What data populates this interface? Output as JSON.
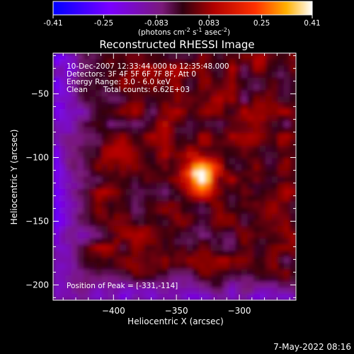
{
  "colorbar": {
    "tick_labels": [
      "-0.41",
      "-0.25",
      "-0.083",
      "0.083",
      "0.25",
      "0.41"
    ],
    "tick_values": [
      -0.41,
      -0.25,
      -0.083,
      0.083,
      0.25,
      0.41
    ],
    "range": [
      -0.41,
      0.41
    ],
    "units_main": "(photons cm",
    "units_sup1": "-2",
    "units_mid": " s",
    "units_sup2": "-1",
    "units_end": " asec",
    "units_sup3": "-2",
    "units_close": ")"
  },
  "chart_data": {
    "type": "heatmap",
    "title": "Reconstructed RHESSI Image",
    "xlabel": "Heliocentric X (arcsec)",
    "ylabel": "Heliocentric Y (arcsec)",
    "xlim": [
      -448,
      -255
    ],
    "ylim": [
      -212,
      -18
    ],
    "x_ticks": [
      -400,
      -350,
      -300
    ],
    "x_tick_labels": [
      "−400",
      "−350",
      "−300"
    ],
    "y_ticks": [
      -50,
      -100,
      -150,
      -200
    ],
    "y_tick_labels": [
      "−50",
      "−100",
      "−150",
      "−200"
    ],
    "peak": {
      "x": -331,
      "y": -114,
      "value": 0.41
    },
    "annotations": {
      "time_range": "10-Dec-2007 12:33:44.000 to 12:35:48.000",
      "detectors": "Detectors: 3F 4F 5F 6F 7F 8F, Att 0",
      "energy": "Energy Range: 3.0 - 6.0 keV",
      "method": "Clean",
      "counts": "Total counts: 6.62E+03",
      "peak_label": "Position of Peak = [-331,-114]"
    }
  },
  "footer": {
    "timestamp": "7-May-2022 08:16"
  }
}
